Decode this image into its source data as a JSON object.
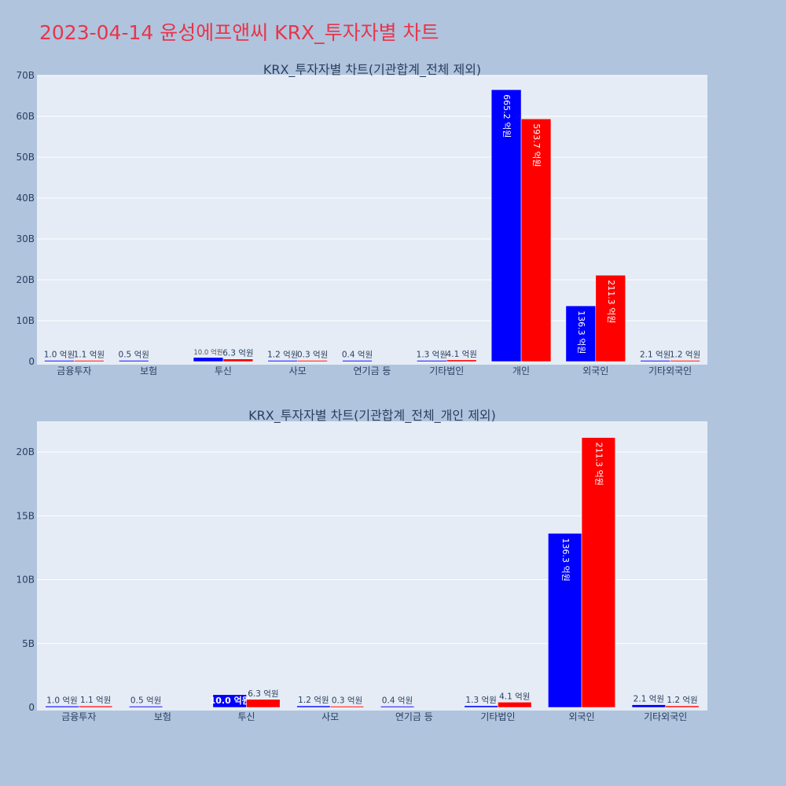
{
  "page": {
    "title": "2023-04-14 윤성에프앤씨 KRX_투자자별 차트"
  },
  "colors": {
    "buy": "#0000ff",
    "sell": "#ff0000",
    "plot_bg": "#e5ecf6",
    "page_bg": "#b0c4de",
    "title": "#e8354a"
  },
  "chart_data": [
    {
      "type": "bar",
      "title": "KRX_투자자별 차트(기관합계_전체 제외)",
      "categories": [
        "금융투자",
        "보험",
        "투신",
        "사모",
        "연기금 등",
        "기타법인",
        "개인",
        "외국인",
        "기타외국인"
      ],
      "series": [
        {
          "values": [
            0.1,
            0.05,
            1.0,
            0.12,
            0.04,
            0.13,
            66.52,
            13.63,
            0.21
          ],
          "labels": [
            "1.0 억원",
            "0.5 억원",
            "10.0 억원",
            "1.2 억원",
            "0.4 억원",
            "1.3 억원",
            "665.2 억원",
            "136.3 억원",
            "2.1 억원"
          ]
        },
        {
          "values": [
            0.11,
            0,
            0.63,
            0.03,
            0,
            0.41,
            59.37,
            21.13,
            0.12
          ],
          "labels": [
            "1.1 억원",
            "",
            "6.3 억원",
            "0.3 억원",
            "",
            "4.1 억원",
            "593.7 억원",
            "211.3 억원",
            "1.2 억원"
          ]
        }
      ],
      "ylim": [
        0,
        70
      ],
      "yticks": [
        0,
        10,
        20,
        30,
        40,
        50,
        60,
        70
      ],
      "ytick_labels": [
        "0",
        "10B",
        "20B",
        "30B",
        "40B",
        "50B",
        "60B",
        "70B"
      ],
      "grid": true
    },
    {
      "type": "bar",
      "title": "KRX_투자자별 차트(기관합계_전체_개인 제외)",
      "categories": [
        "금융투자",
        "보험",
        "투신",
        "사모",
        "연기금 등",
        "기타법인",
        "외국인",
        "기타외국인"
      ],
      "series": [
        {
          "values": [
            0.1,
            0.05,
            1.0,
            0.12,
            0.04,
            0.13,
            13.63,
            0.21
          ],
          "labels": [
            "1.0 억원",
            "0.5 억원",
            "10.0 억원",
            "1.2 억원",
            "0.4 억원",
            "1.3 억원",
            "136.3 억원",
            "2.1 억원"
          ]
        },
        {
          "values": [
            0.11,
            0,
            0.63,
            0.03,
            0,
            0.41,
            21.13,
            0.12
          ],
          "labels": [
            "1.1 억원",
            "",
            "6.3 억원",
            "0.3 억원",
            "",
            "4.1 억원",
            "211.3 억원",
            "1.2 억원"
          ]
        }
      ],
      "ylim": [
        0,
        22.4
      ],
      "yticks": [
        0,
        5,
        10,
        15,
        20
      ],
      "ytick_labels": [
        "0",
        "5B",
        "10B",
        "15B",
        "20B"
      ],
      "grid": true
    }
  ]
}
